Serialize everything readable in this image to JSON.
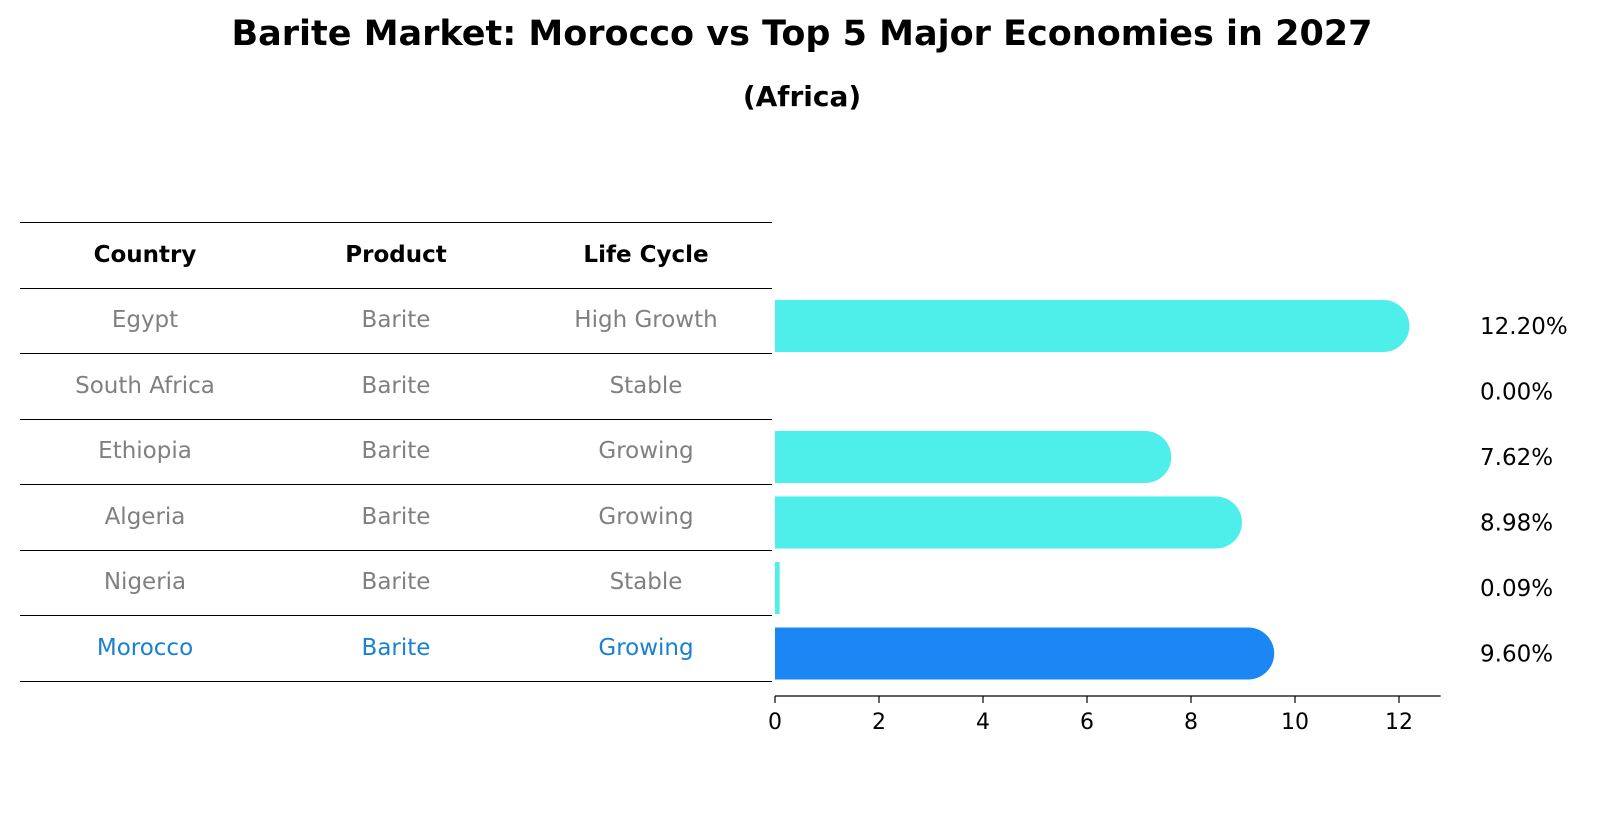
{
  "title": "Barite Market: Morocco vs Top 5 Major Economies in 2027",
  "subtitle": "(Africa)",
  "table": {
    "headers": [
      "Country",
      "Product",
      "Life Cycle"
    ],
    "rows": [
      [
        "Egypt",
        "Barite",
        "High Growth"
      ],
      [
        "South Africa",
        "Barite",
        "Stable"
      ],
      [
        "Ethiopia",
        "Barite",
        "Growing"
      ],
      [
        "Algeria",
        "Barite",
        "Growing"
      ],
      [
        "Nigeria",
        "Barite",
        "Stable"
      ],
      [
        "Morocco",
        "Barite",
        "Growing"
      ]
    ],
    "highlight_row": 5
  },
  "chart_data": {
    "type": "bar",
    "orientation": "horizontal",
    "categories": [
      "Egypt",
      "South Africa",
      "Ethiopia",
      "Algeria",
      "Nigeria",
      "Morocco"
    ],
    "values": [
      12.2,
      0.0,
      7.62,
      8.98,
      0.09,
      9.6
    ],
    "value_labels": [
      "12.20%",
      "0.00%",
      "7.62%",
      "8.98%",
      "0.09%",
      "9.60%"
    ],
    "xlim": [
      0,
      12.8
    ],
    "xticks": [
      0,
      2,
      4,
      6,
      8,
      10,
      12
    ],
    "highlight_index": 5,
    "colors": {
      "bar": "#4eeeea",
      "highlight": "#1a87f5"
    }
  }
}
